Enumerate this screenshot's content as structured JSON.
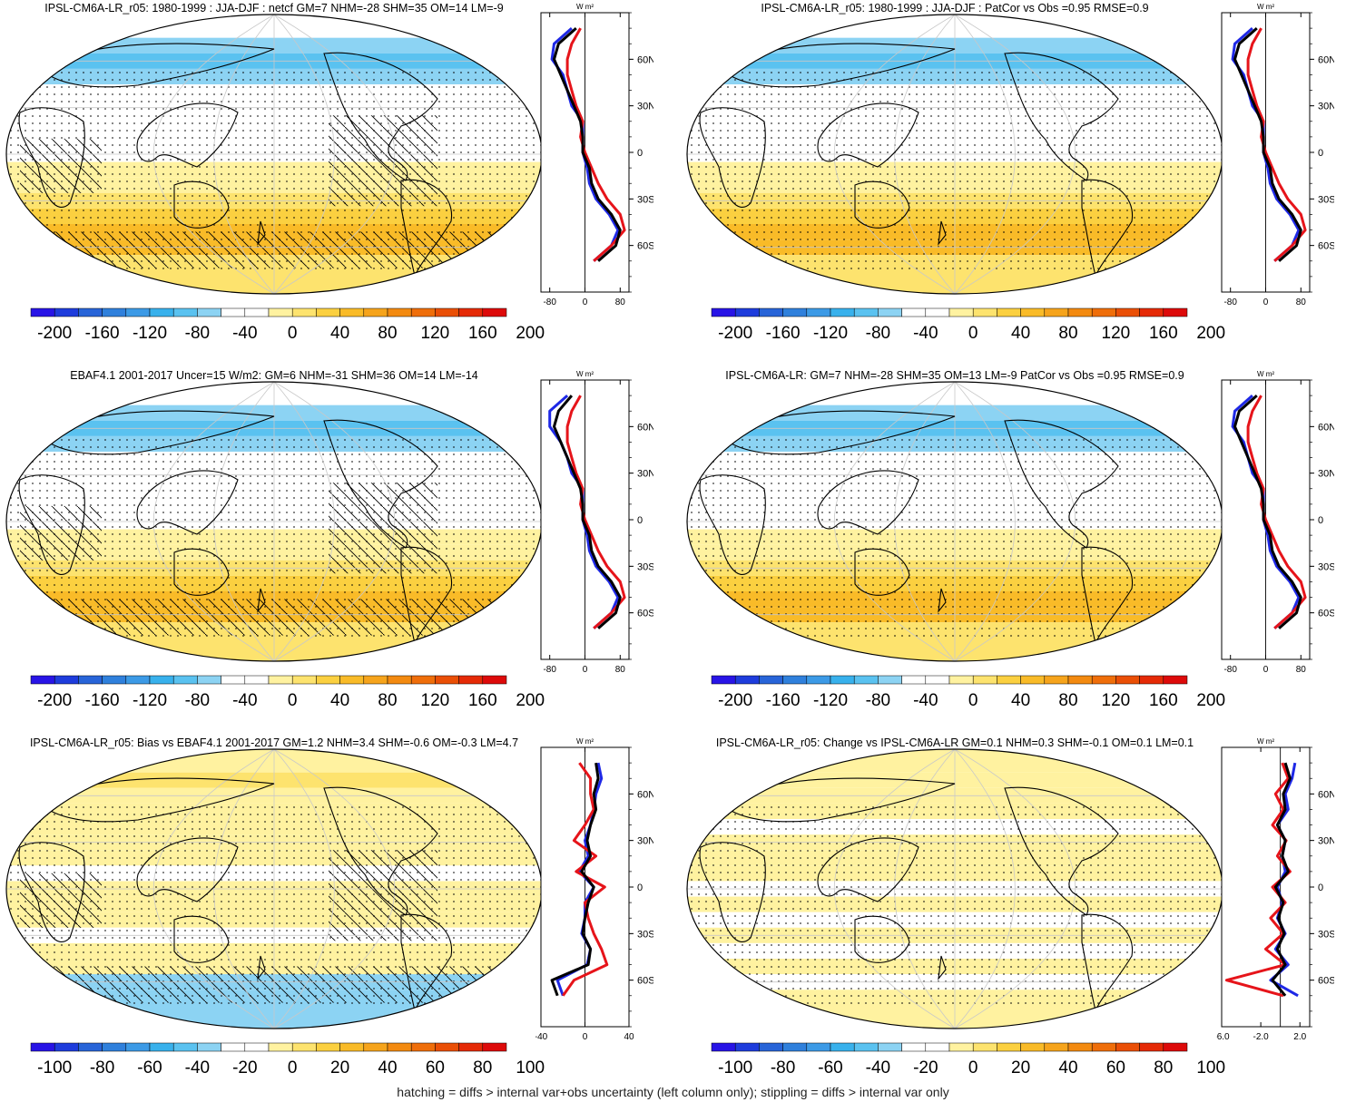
{
  "colors": {
    "palette": [
      "#2814e6",
      "#1e3cdc",
      "#2864d8",
      "#2f80dc",
      "#3c9ae6",
      "#38b1ec",
      "#5ac2f0",
      "#8cd3f3",
      "#ffffff",
      "#ffffff",
      "#fff2a0",
      "#fde36e",
      "#fbd040",
      "#f9bb28",
      "#f6a41c",
      "#f38a10",
      "#ef6e0a",
      "#ea4f06",
      "#e52a06",
      "#dd0a0a"
    ],
    "land": "#000000",
    "lat_model": "#000000",
    "lat_obs": "#e6141a",
    "lat_ref": "#1e28e6"
  },
  "panels": [
    {
      "id": "p1",
      "title": "IPSL-CM6A-LR_r05: 1980-1999 : JJA-DJF : netcf GM=7 NHM=-28 SHM=35 OM=14 LM=-9",
      "hatching": true,
      "colorbar_labels": [
        "-200",
        "-160",
        "-120",
        "-80",
        "-40",
        "0",
        "40",
        "80",
        "120",
        "160",
        "200"
      ],
      "profile": {
        "unit_label": "W m²",
        "x_range": [
          -100,
          100
        ],
        "x_ticks": [
          "-80",
          "0",
          "80"
        ],
        "y_ticks": [
          "60N",
          "30N",
          "0",
          "30S",
          "60S"
        ]
      },
      "chart_data": {
        "type": "heatmap",
        "title": "IPSL-CM6A-LR_r05: 1980-1999 : JJA-DJF : netcf GM=7 NHM=-28 SHM=35 OM=14 LM=-9",
        "colorbar_range": [
          -210,
          210
        ],
        "latitudes": [
          80,
          70,
          60,
          50,
          40,
          30,
          20,
          10,
          0,
          -10,
          -20,
          -30,
          -40,
          -50,
          -60,
          -70
        ],
        "series": [
          {
            "name": "model",
            "values": [
              -20,
              -60,
              -70,
              -55,
              -40,
              -25,
              -10,
              -5,
              -5,
              10,
              15,
              30,
              60,
              80,
              70,
              30
            ]
          },
          {
            "name": "obs",
            "values": [
              -10,
              -30,
              -40,
              -40,
              -30,
              -20,
              -5,
              -10,
              0,
              15,
              30,
              50,
              80,
              90,
              60,
              20
            ]
          },
          {
            "name": "ref",
            "values": [
              -30,
              -70,
              -75,
              -50,
              -40,
              -30,
              -5,
              -5,
              -5,
              5,
              10,
              25,
              55,
              75,
              60,
              20
            ]
          }
        ]
      }
    },
    {
      "id": "p2",
      "title": "IPSL-CM6A-LR_r05: 1980-1999 : JJA-DJF : PatCor vs Obs =0.95 RMSE=0.9",
      "hatching": false,
      "colorbar_labels": [
        "-200",
        "-160",
        "-120",
        "-80",
        "-40",
        "0",
        "40",
        "80",
        "120",
        "160",
        "200"
      ],
      "profile": {
        "unit_label": "W m²",
        "x_range": [
          -100,
          100
        ],
        "x_ticks": [
          "-80",
          "0",
          "80"
        ],
        "y_ticks": [
          "60N",
          "30N",
          "0",
          "30S",
          "60S"
        ]
      },
      "chart_data": {
        "type": "heatmap",
        "title": "IPSL-CM6A-LR_r05: 1980-1999 : JJA-DJF : PatCor vs Obs =0.95 RMSE=0.9",
        "colorbar_range": [
          -210,
          210
        ],
        "latitudes": [
          80,
          70,
          60,
          50,
          40,
          30,
          20,
          10,
          0,
          -10,
          -20,
          -30,
          -40,
          -50,
          -60,
          -70
        ],
        "series": [
          {
            "name": "model",
            "values": [
              -20,
              -60,
              -70,
              -55,
              -40,
              -25,
              -10,
              -5,
              -5,
              10,
              15,
              30,
              60,
              80,
              70,
              30
            ]
          },
          {
            "name": "obs",
            "values": [
              -10,
              -30,
              -40,
              -40,
              -30,
              -20,
              -5,
              -10,
              0,
              15,
              30,
              50,
              80,
              90,
              60,
              20
            ]
          },
          {
            "name": "ref",
            "values": [
              -30,
              -70,
              -75,
              -50,
              -40,
              -30,
              -5,
              -5,
              -5,
              5,
              10,
              25,
              55,
              75,
              60,
              20
            ]
          }
        ]
      }
    },
    {
      "id": "p3",
      "title": "EBAF4.1 2001-2017 Uncer=15 W/m2: GM=6 NHM=-31 SHM=36 OM=14 LM=-14",
      "hatching": true,
      "colorbar_labels": [
        "-200",
        "-160",
        "-120",
        "-80",
        "-40",
        "0",
        "40",
        "80",
        "120",
        "160",
        "200"
      ],
      "profile": {
        "unit_label": "W m²",
        "x_range": [
          -100,
          100
        ],
        "x_ticks": [
          "-80",
          "0",
          "80"
        ],
        "y_ticks": [
          "60N",
          "30N",
          "0",
          "30S",
          "60S"
        ]
      },
      "chart_data": {
        "type": "heatmap",
        "title": "EBAF4.1 2001-2017 Uncer=15 W/m2: GM=6 NHM=-31 SHM=36 OM=14 LM=-14",
        "colorbar_range": [
          -210,
          210
        ],
        "latitudes": [
          80,
          70,
          60,
          50,
          40,
          30,
          20,
          10,
          0,
          -10,
          -20,
          -30,
          -40,
          -50,
          -60,
          -70
        ],
        "series": [
          {
            "name": "model",
            "values": [
              -30,
              -60,
              -70,
              -55,
              -40,
              -25,
              -10,
              -5,
              -5,
              10,
              15,
              30,
              60,
              80,
              70,
              30
            ]
          },
          {
            "name": "obs",
            "values": [
              -10,
              -30,
              -40,
              -40,
              -30,
              -20,
              -5,
              -10,
              0,
              15,
              30,
              50,
              80,
              90,
              60,
              20
            ]
          },
          {
            "name": "ref",
            "values": [
              -40,
              -80,
              -80,
              -55,
              -40,
              -30,
              -5,
              -5,
              -5,
              5,
              10,
              25,
              55,
              75,
              60,
              20
            ]
          }
        ]
      }
    },
    {
      "id": "p4",
      "title": "IPSL-CM6A-LR: GM=7 NHM=-28 SHM=35 OM=13 LM=-9 PatCor vs Obs =0.95 RMSE=0.9",
      "hatching": false,
      "colorbar_labels": [
        "-200",
        "-160",
        "-120",
        "-80",
        "-40",
        "0",
        "40",
        "80",
        "120",
        "160",
        "200"
      ],
      "profile": {
        "unit_label": "W m²",
        "x_range": [
          -100,
          100
        ],
        "x_ticks": [
          "-80",
          "0",
          "80"
        ],
        "y_ticks": [
          "60N",
          "30N",
          "0",
          "30S",
          "60S"
        ]
      },
      "chart_data": {
        "type": "heatmap",
        "title": "IPSL-CM6A-LR: GM=7 NHM=-28 SHM=35 OM=13 LM=-9 PatCor vs Obs =0.95 RMSE=0.9",
        "colorbar_range": [
          -210,
          210
        ],
        "latitudes": [
          80,
          70,
          60,
          50,
          40,
          30,
          20,
          10,
          0,
          -10,
          -20,
          -30,
          -40,
          -50,
          -60,
          -70
        ],
        "series": [
          {
            "name": "model",
            "values": [
              -20,
              -60,
              -70,
              -55,
              -40,
              -25,
              -10,
              -5,
              -5,
              10,
              15,
              30,
              60,
              80,
              70,
              30
            ]
          },
          {
            "name": "obs",
            "values": [
              -10,
              -30,
              -40,
              -40,
              -30,
              -20,
              -5,
              -10,
              0,
              15,
              30,
              50,
              80,
              90,
              60,
              20
            ]
          },
          {
            "name": "ref",
            "values": [
              -30,
              -70,
              -75,
              -50,
              -40,
              -30,
              -5,
              -5,
              -5,
              5,
              10,
              25,
              55,
              75,
              60,
              20
            ]
          }
        ]
      }
    },
    {
      "id": "p5",
      "title": "IPSL-CM6A-LR_r05: Bias vs EBAF4.1 2001-2017 GM=1.2 NHM=3.4 SHM=-0.6 OM=-0.3 LM=4.7",
      "hatching": true,
      "colorbar_labels": [
        "-100",
        "-80",
        "-60",
        "-40",
        "-20",
        "0",
        "20",
        "40",
        "60",
        "80",
        "100"
      ],
      "profile": {
        "unit_label": "W m²",
        "x_range": [
          -40,
          40
        ],
        "x_ticks": [
          "-40",
          "0",
          "40"
        ],
        "y_ticks": [
          "60N",
          "30N",
          "0",
          "30S",
          "60S"
        ]
      },
      "chart_data": {
        "type": "heatmap",
        "title": "IPSL-CM6A-LR_r05: Bias vs EBAF4.1 2001-2017 GM=1.2 NHM=3.4 SHM=-0.6 OM=-0.3 LM=4.7",
        "colorbar_range": [
          -105,
          105
        ],
        "latitudes": [
          80,
          70,
          60,
          50,
          40,
          30,
          20,
          10,
          0,
          -10,
          -20,
          -30,
          -40,
          -50,
          -60,
          -70
        ],
        "series": [
          {
            "name": "model",
            "values": [
              10,
              12,
              8,
              10,
              5,
              2,
              5,
              -3,
              8,
              3,
              0,
              -2,
              5,
              3,
              -30,
              -25
            ]
          },
          {
            "name": "obs",
            "values": [
              -5,
              5,
              5,
              8,
              0,
              -10,
              10,
              -8,
              18,
              0,
              3,
              8,
              15,
              20,
              -10,
              -20
            ]
          },
          {
            "name": "ref",
            "values": [
              12,
              15,
              10,
              8,
              5,
              0,
              3,
              -5,
              8,
              0,
              0,
              -3,
              5,
              2,
              -25,
              -20
            ]
          }
        ]
      }
    },
    {
      "id": "p6",
      "title": "IPSL-CM6A-LR_r05: Change vs IPSL-CM6A-LR GM=0.1 NHM=0.3 SHM=-0.1 OM=0.1 LM=0.1",
      "hatching": false,
      "colorbar_labels": [
        "-100",
        "-80",
        "-60",
        "-40",
        "-20",
        "0",
        "20",
        "40",
        "60",
        "80",
        "100"
      ],
      "profile": {
        "unit_label": "W m²",
        "x_range": [
          -6,
          3
        ],
        "x_ticks": [
          "-6.0",
          "-2.0",
          "2.0"
        ],
        "y_ticks": [
          "60N",
          "30N",
          "0",
          "30S",
          "60S"
        ]
      },
      "chart_data": {
        "type": "heatmap",
        "title": "IPSL-CM6A-LR_r05: Change vs IPSL-CM6A-LR GM=0.1 NHM=0.3 SHM=-0.1 OM=0.1 LM=0.1",
        "colorbar_range": [
          -105,
          105
        ],
        "latitudes": [
          80,
          70,
          60,
          50,
          40,
          30,
          20,
          10,
          0,
          -10,
          -20,
          -30,
          -40,
          -50,
          -60,
          -70
        ],
        "series": [
          {
            "name": "model",
            "values": [
              0.5,
              1.0,
              0.3,
              0.5,
              -0.3,
              0.5,
              0.2,
              0.8,
              -0.5,
              0.3,
              -0.2,
              0.4,
              -0.3,
              0.5,
              -0.8,
              0.5
            ]
          },
          {
            "name": "obs",
            "values": [
              0.2,
              0.8,
              -0.5,
              0.3,
              -0.8,
              0.6,
              -0.3,
              1.0,
              -0.8,
              0.5,
              -1.0,
              0.3,
              -1.5,
              0.5,
              -5.5,
              0.3
            ]
          },
          {
            "name": "ref",
            "values": [
              1.5,
              1.2,
              0.5,
              0.8,
              -0.3,
              0.5,
              0.2,
              0.5,
              -0.3,
              0.2,
              -0.3,
              0.5,
              -0.5,
              0.8,
              -1.0,
              1.8
            ]
          }
        ]
      }
    }
  ],
  "footnote": "hatching = diffs > internal var+obs uncertainty (left column only); stippling = diffs > internal var only"
}
